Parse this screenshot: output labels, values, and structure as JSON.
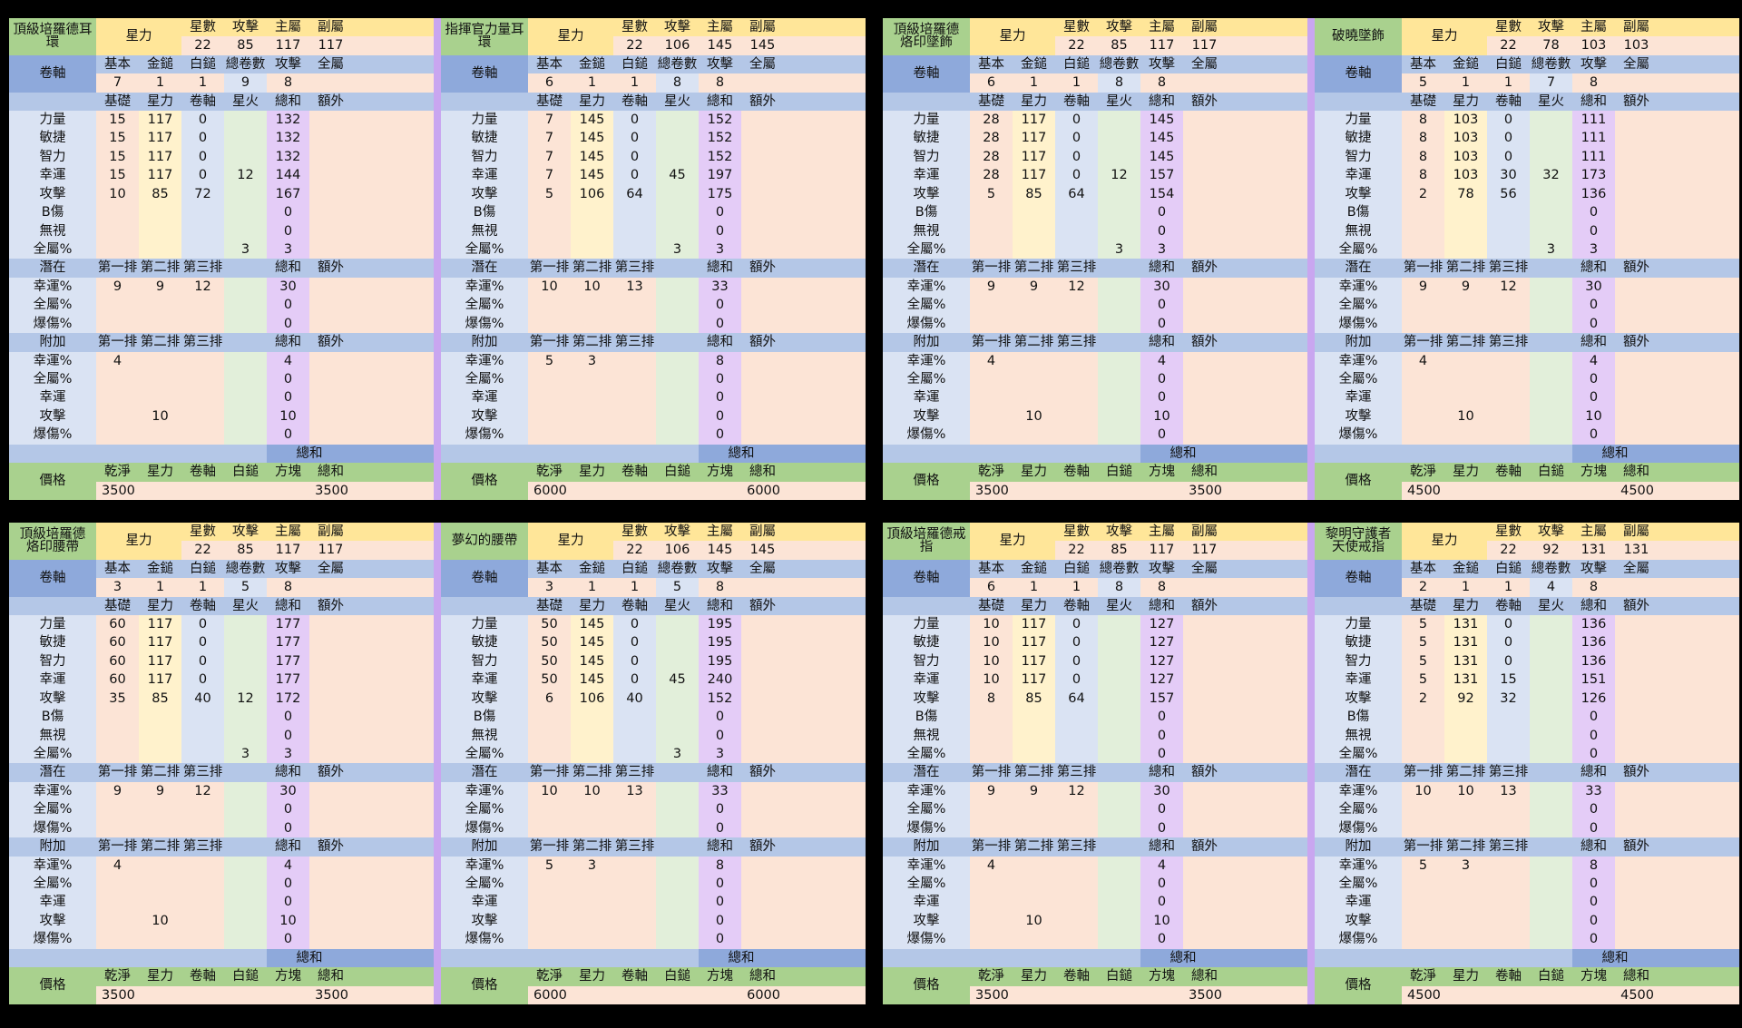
{
  "labels": {
    "star_force": "星力",
    "star_count": "星數",
    "attack": "攻擊",
    "main_stat": "主屬",
    "sub_stat": "副屬",
    "scroll": "卷軸",
    "basic": "基本",
    "gold_hammer": "金鎚",
    "white_hammer": "白鎚",
    "total_scrolls": "總卷數",
    "all_stat": "全屬",
    "base": "基礎",
    "starforce": "星力",
    "scroll_col": "卷軸",
    "flame": "星火",
    "total": "總和",
    "extra": "額外",
    "stats": [
      "力量",
      "敏捷",
      "智力",
      "幸運",
      "攻擊",
      "B傷",
      "無視",
      "全屬%"
    ],
    "potential": "潛在",
    "bonus": "附加",
    "line1": "第一排",
    "line2": "第二排",
    "line3": "第三排",
    "potential_stats": [
      "幸運%",
      "全屬%",
      "爆傷%"
    ],
    "bonus_stats": [
      "幸運%",
      "全屬%",
      "幸運",
      "攻擊",
      "爆傷%"
    ],
    "price": "價格",
    "clean": "乾淨",
    "cube": "方塊",
    "total_sum": "總和"
  },
  "items": [
    {
      "name": "頂級培羅德耳環",
      "stars": "22",
      "atk": "85",
      "main": "117",
      "sub": "117",
      "scroll": {
        "basic": "7",
        "gold": "1",
        "white": "1",
        "total": "9",
        "atk": "8",
        "all": ""
      },
      "stats": [
        [
          "15",
          "117",
          "0",
          "",
          "132",
          ""
        ],
        [
          "15",
          "117",
          "0",
          "",
          "132",
          ""
        ],
        [
          "15",
          "117",
          "0",
          "",
          "132",
          ""
        ],
        [
          "15",
          "117",
          "0",
          "12",
          "144",
          ""
        ],
        [
          "10",
          "85",
          "72",
          "",
          "167",
          ""
        ],
        [
          "",
          "",
          "",
          "",
          "0",
          ""
        ],
        [
          "",
          "",
          "",
          "",
          "0",
          ""
        ],
        [
          "",
          "",
          "",
          "3",
          "3",
          ""
        ]
      ],
      "potential": [
        [
          "9",
          "9",
          "12",
          "30",
          ""
        ],
        [
          "",
          "",
          "",
          "0",
          ""
        ],
        [
          "",
          "",
          "",
          "0",
          ""
        ]
      ],
      "bonus": [
        [
          "4",
          "",
          "",
          "4",
          ""
        ],
        [
          "",
          "",
          "",
          "0",
          ""
        ],
        [
          "",
          "",
          "",
          "0",
          ""
        ],
        [
          "",
          "10",
          "",
          "10",
          ""
        ],
        [
          "",
          "",
          "",
          "0",
          ""
        ]
      ],
      "price": {
        "clean": "3500",
        "star": "",
        "scroll": "",
        "white": "",
        "cube": "",
        "total": "3500"
      }
    },
    {
      "name": "指揮官力量耳環",
      "stars": "22",
      "atk": "106",
      "main": "145",
      "sub": "145",
      "scroll": {
        "basic": "6",
        "gold": "1",
        "white": "1",
        "total": "8",
        "atk": "8",
        "all": ""
      },
      "stats": [
        [
          "7",
          "145",
          "0",
          "",
          "152",
          ""
        ],
        [
          "7",
          "145",
          "0",
          "",
          "152",
          ""
        ],
        [
          "7",
          "145",
          "0",
          "",
          "152",
          ""
        ],
        [
          "7",
          "145",
          "0",
          "45",
          "197",
          ""
        ],
        [
          "5",
          "106",
          "64",
          "",
          "175",
          ""
        ],
        [
          "",
          "",
          "",
          "",
          "0",
          ""
        ],
        [
          "",
          "",
          "",
          "",
          "0",
          ""
        ],
        [
          "",
          "",
          "",
          "3",
          "3",
          ""
        ]
      ],
      "potential": [
        [
          "10",
          "10",
          "13",
          "33",
          ""
        ],
        [
          "",
          "",
          "",
          "0",
          ""
        ],
        [
          "",
          "",
          "",
          "0",
          ""
        ]
      ],
      "bonus": [
        [
          "5",
          "3",
          "",
          "8",
          ""
        ],
        [
          "",
          "",
          "",
          "0",
          ""
        ],
        [
          "",
          "",
          "",
          "0",
          ""
        ],
        [
          "",
          "",
          "",
          "0",
          ""
        ],
        [
          "",
          "",
          "",
          "0",
          ""
        ]
      ],
      "price": {
        "clean": "6000",
        "star": "",
        "scroll": "",
        "white": "",
        "cube": "",
        "total": "6000"
      }
    },
    {
      "name": "頂級培羅德\n烙印墜飾",
      "stars": "22",
      "atk": "85",
      "main": "117",
      "sub": "117",
      "scroll": {
        "basic": "6",
        "gold": "1",
        "white": "1",
        "total": "8",
        "atk": "8",
        "all": ""
      },
      "stats": [
        [
          "28",
          "117",
          "0",
          "",
          "145",
          ""
        ],
        [
          "28",
          "117",
          "0",
          "",
          "145",
          ""
        ],
        [
          "28",
          "117",
          "0",
          "",
          "145",
          ""
        ],
        [
          "28",
          "117",
          "0",
          "12",
          "157",
          ""
        ],
        [
          "5",
          "85",
          "64",
          "",
          "154",
          ""
        ],
        [
          "",
          "",
          "",
          "",
          "0",
          ""
        ],
        [
          "",
          "",
          "",
          "",
          "0",
          ""
        ],
        [
          "",
          "",
          "",
          "3",
          "3",
          ""
        ]
      ],
      "potential": [
        [
          "9",
          "9",
          "12",
          "30",
          ""
        ],
        [
          "",
          "",
          "",
          "0",
          ""
        ],
        [
          "",
          "",
          "",
          "0",
          ""
        ]
      ],
      "bonus": [
        [
          "4",
          "",
          "",
          "4",
          ""
        ],
        [
          "",
          "",
          "",
          "0",
          ""
        ],
        [
          "",
          "",
          "",
          "0",
          ""
        ],
        [
          "",
          "10",
          "",
          "10",
          ""
        ],
        [
          "",
          "",
          "",
          "0",
          ""
        ]
      ],
      "price": {
        "clean": "3500",
        "star": "",
        "scroll": "",
        "white": "",
        "cube": "",
        "total": "3500"
      }
    },
    {
      "name": "破曉墜飾",
      "stars": "22",
      "atk": "78",
      "main": "103",
      "sub": "103",
      "scroll": {
        "basic": "5",
        "gold": "1",
        "white": "1",
        "total": "7",
        "atk": "8",
        "all": ""
      },
      "stats": [
        [
          "8",
          "103",
          "0",
          "",
          "111",
          ""
        ],
        [
          "8",
          "103",
          "0",
          "",
          "111",
          ""
        ],
        [
          "8",
          "103",
          "0",
          "",
          "111",
          ""
        ],
        [
          "8",
          "103",
          "30",
          "32",
          "173",
          ""
        ],
        [
          "2",
          "78",
          "56",
          "",
          "136",
          ""
        ],
        [
          "",
          "",
          "",
          "",
          "0",
          ""
        ],
        [
          "",
          "",
          "",
          "",
          "0",
          ""
        ],
        [
          "",
          "",
          "",
          "3",
          "3",
          ""
        ]
      ],
      "potential": [
        [
          "9",
          "9",
          "12",
          "30",
          ""
        ],
        [
          "",
          "",
          "",
          "0",
          ""
        ],
        [
          "",
          "",
          "",
          "0",
          ""
        ]
      ],
      "bonus": [
        [
          "4",
          "",
          "",
          "4",
          ""
        ],
        [
          "",
          "",
          "",
          "0",
          ""
        ],
        [
          "",
          "",
          "",
          "0",
          ""
        ],
        [
          "",
          "10",
          "",
          "10",
          ""
        ],
        [
          "",
          "",
          "",
          "0",
          ""
        ]
      ],
      "price": {
        "clean": "4500",
        "star": "",
        "scroll": "",
        "white": "",
        "cube": "",
        "total": "4500"
      }
    },
    {
      "name": "頂級培羅德\n烙印腰帶",
      "stars": "22",
      "atk": "85",
      "main": "117",
      "sub": "117",
      "scroll": {
        "basic": "3",
        "gold": "1",
        "white": "1",
        "total": "5",
        "atk": "8",
        "all": ""
      },
      "stats": [
        [
          "60",
          "117",
          "0",
          "",
          "177",
          ""
        ],
        [
          "60",
          "117",
          "0",
          "",
          "177",
          ""
        ],
        [
          "60",
          "117",
          "0",
          "",
          "177",
          ""
        ],
        [
          "60",
          "117",
          "0",
          "",
          "177",
          ""
        ],
        [
          "35",
          "85",
          "40",
          "12",
          "172",
          ""
        ],
        [
          "",
          "",
          "",
          "",
          "0",
          ""
        ],
        [
          "",
          "",
          "",
          "",
          "0",
          ""
        ],
        [
          "",
          "",
          "",
          "3",
          "3",
          ""
        ]
      ],
      "potential": [
        [
          "9",
          "9",
          "12",
          "30",
          ""
        ],
        [
          "",
          "",
          "",
          "0",
          ""
        ],
        [
          "",
          "",
          "",
          "0",
          ""
        ]
      ],
      "bonus": [
        [
          "4",
          "",
          "",
          "4",
          ""
        ],
        [
          "",
          "",
          "",
          "0",
          ""
        ],
        [
          "",
          "",
          "",
          "0",
          ""
        ],
        [
          "",
          "10",
          "",
          "10",
          ""
        ],
        [
          "",
          "",
          "",
          "0",
          ""
        ]
      ],
      "price": {
        "clean": "3500",
        "star": "",
        "scroll": "",
        "white": "",
        "cube": "",
        "total": "3500"
      }
    },
    {
      "name": "夢幻的腰帶",
      "stars": "22",
      "atk": "106",
      "main": "145",
      "sub": "145",
      "scroll": {
        "basic": "3",
        "gold": "1",
        "white": "1",
        "total": "5",
        "atk": "8",
        "all": ""
      },
      "stats": [
        [
          "50",
          "145",
          "0",
          "",
          "195",
          ""
        ],
        [
          "50",
          "145",
          "0",
          "",
          "195",
          ""
        ],
        [
          "50",
          "145",
          "0",
          "",
          "195",
          ""
        ],
        [
          "50",
          "145",
          "0",
          "45",
          "240",
          ""
        ],
        [
          "6",
          "106",
          "40",
          "",
          "152",
          ""
        ],
        [
          "",
          "",
          "",
          "",
          "0",
          ""
        ],
        [
          "",
          "",
          "",
          "",
          "0",
          ""
        ],
        [
          "",
          "",
          "",
          "3",
          "3",
          ""
        ]
      ],
      "potential": [
        [
          "10",
          "10",
          "13",
          "33",
          ""
        ],
        [
          "",
          "",
          "",
          "0",
          ""
        ],
        [
          "",
          "",
          "",
          "0",
          ""
        ]
      ],
      "bonus": [
        [
          "5",
          "3",
          "",
          "8",
          ""
        ],
        [
          "",
          "",
          "",
          "0",
          ""
        ],
        [
          "",
          "",
          "",
          "0",
          ""
        ],
        [
          "",
          "",
          "",
          "0",
          ""
        ],
        [
          "",
          "",
          "",
          "0",
          ""
        ]
      ],
      "price": {
        "clean": "6000",
        "star": "",
        "scroll": "",
        "white": "",
        "cube": "",
        "total": "6000"
      }
    },
    {
      "name": "頂級培羅德戒指",
      "stars": "22",
      "atk": "85",
      "main": "117",
      "sub": "117",
      "scroll": {
        "basic": "6",
        "gold": "1",
        "white": "1",
        "total": "8",
        "atk": "8",
        "all": ""
      },
      "stats": [
        [
          "10",
          "117",
          "0",
          "",
          "127",
          ""
        ],
        [
          "10",
          "117",
          "0",
          "",
          "127",
          ""
        ],
        [
          "10",
          "117",
          "0",
          "",
          "127",
          ""
        ],
        [
          "10",
          "117",
          "0",
          "",
          "127",
          ""
        ],
        [
          "8",
          "85",
          "64",
          "",
          "157",
          ""
        ],
        [
          "",
          "",
          "",
          "",
          "0",
          ""
        ],
        [
          "",
          "",
          "",
          "",
          "0",
          ""
        ],
        [
          "",
          "",
          "",
          "",
          "0",
          ""
        ]
      ],
      "potential": [
        [
          "9",
          "9",
          "12",
          "30",
          ""
        ],
        [
          "",
          "",
          "",
          "0",
          ""
        ],
        [
          "",
          "",
          "",
          "0",
          ""
        ]
      ],
      "bonus": [
        [
          "4",
          "",
          "",
          "4",
          ""
        ],
        [
          "",
          "",
          "",
          "0",
          ""
        ],
        [
          "",
          "",
          "",
          "0",
          ""
        ],
        [
          "",
          "10",
          "",
          "10",
          ""
        ],
        [
          "",
          "",
          "",
          "0",
          ""
        ]
      ],
      "price": {
        "clean": "3500",
        "star": "",
        "scroll": "",
        "white": "",
        "cube": "",
        "total": "3500"
      }
    },
    {
      "name": "黎明守護者\n天使戒指",
      "stars": "22",
      "atk": "92",
      "main": "131",
      "sub": "131",
      "scroll": {
        "basic": "2",
        "gold": "1",
        "white": "1",
        "total": "4",
        "atk": "8",
        "all": ""
      },
      "stats": [
        [
          "5",
          "131",
          "0",
          "",
          "136",
          ""
        ],
        [
          "5",
          "131",
          "0",
          "",
          "136",
          ""
        ],
        [
          "5",
          "131",
          "0",
          "",
          "136",
          ""
        ],
        [
          "5",
          "131",
          "15",
          "",
          "151",
          ""
        ],
        [
          "2",
          "92",
          "32",
          "",
          "126",
          ""
        ],
        [
          "",
          "",
          "",
          "",
          "0",
          ""
        ],
        [
          "",
          "",
          "",
          "",
          "0",
          ""
        ],
        [
          "",
          "",
          "",
          "",
          "0",
          ""
        ]
      ],
      "potential": [
        [
          "10",
          "10",
          "13",
          "33",
          ""
        ],
        [
          "",
          "",
          "",
          "0",
          ""
        ],
        [
          "",
          "",
          "",
          "0",
          ""
        ]
      ],
      "bonus": [
        [
          "5",
          "3",
          "",
          "8",
          ""
        ],
        [
          "",
          "",
          "",
          "0",
          ""
        ],
        [
          "",
          "",
          "",
          "0",
          ""
        ],
        [
          "",
          "",
          "",
          "0",
          ""
        ],
        [
          "",
          "",
          "",
          "0",
          ""
        ]
      ],
      "price": {
        "clean": "4500",
        "star": "",
        "scroll": "",
        "white": "",
        "cube": "",
        "total": "4500"
      }
    }
  ]
}
